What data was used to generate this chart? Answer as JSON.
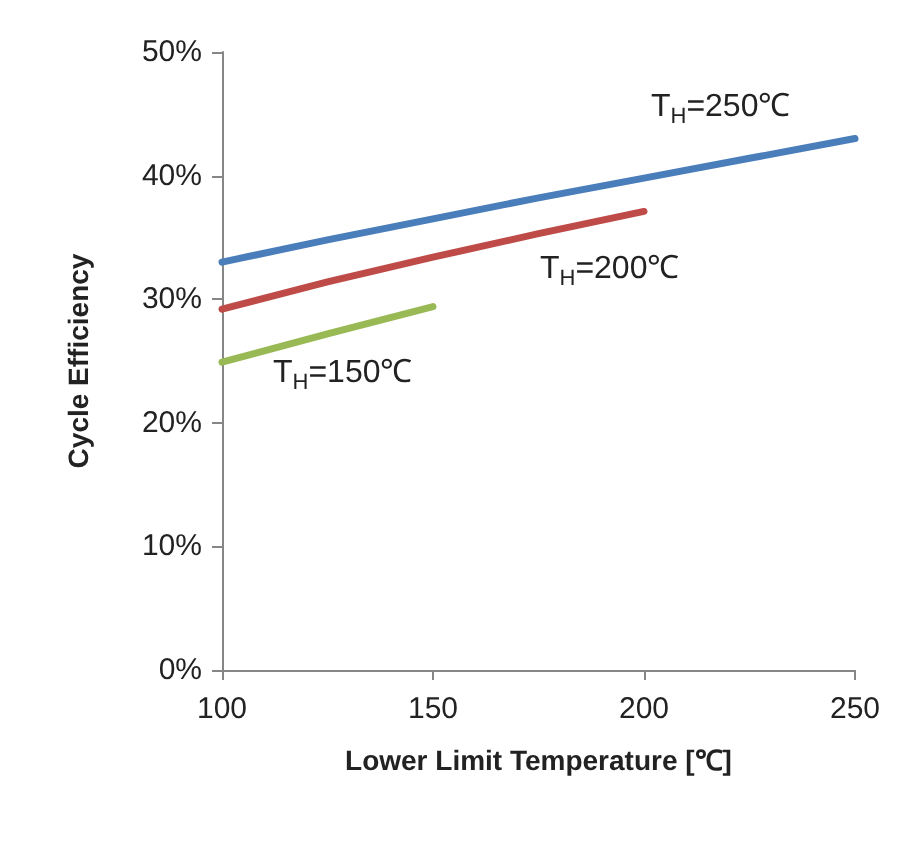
{
  "chart_data": {
    "type": "line",
    "xlabel": "Lower Limit Temperature [℃]",
    "ylabel": "Cycle Efficiency",
    "xlim": [
      100,
      250
    ],
    "xticks": [
      100,
      150,
      200,
      250
    ],
    "ylim": [
      0,
      50
    ],
    "yticks": [
      {
        "value": 0,
        "label": "0%"
      },
      {
        "value": 10,
        "label": "10%"
      },
      {
        "value": 20,
        "label": "20%"
      },
      {
        "value": 30,
        "label": "30%"
      },
      {
        "value": 40,
        "label": "40%"
      },
      {
        "value": 50,
        "label": "50%"
      }
    ],
    "grid": false,
    "marker": "none",
    "line_style": "solid",
    "series": [
      {
        "name": "T$_{H}$=250℃",
        "color": "#4a7ebb",
        "x": [
          100,
          125,
          150,
          175,
          200,
          225,
          250
        ],
        "values": [
          33,
          34.8,
          36.5,
          38.2,
          39.8,
          41.4,
          43
        ]
      },
      {
        "name": "T$_{H}$=200℃",
        "color": "#be4b48",
        "x": [
          100,
          125,
          150,
          175,
          200
        ],
        "values": [
          29.2,
          31.4,
          33.4,
          35.3,
          37.1
        ]
      },
      {
        "name": "T$_{H}$=150℃",
        "color": "#98b954",
        "x": [
          100,
          125,
          150
        ],
        "values": [
          24.9,
          27.2,
          29.4
        ]
      }
    ]
  }
}
